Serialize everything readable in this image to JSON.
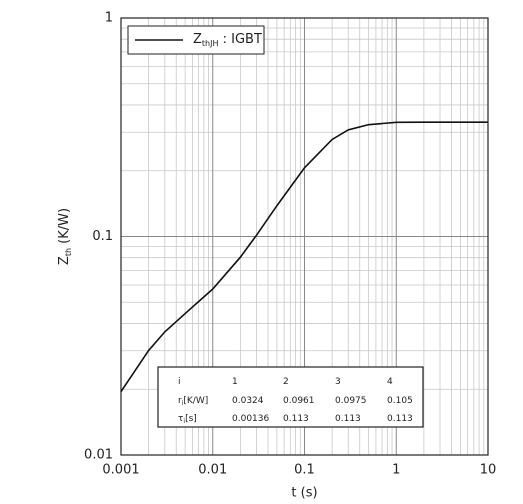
{
  "chart_data": {
    "type": "line",
    "log_x": true,
    "log_y": true,
    "grid": true,
    "xlabel": "t (s)",
    "ylabel": {
      "main": "Z",
      "sub": "th",
      "rest": " (K/W)"
    },
    "x": [
      0.001,
      0.002,
      0.003,
      0.005,
      0.01,
      0.02,
      0.03,
      0.05,
      0.1,
      0.2,
      0.3,
      0.5,
      1,
      2,
      10
    ],
    "series": [
      {
        "name": "Z",
        "name_sub": "thJH",
        "name_rest": " : IGBT",
        "color": "#111111",
        "values": [
          0.0195,
          0.0301,
          0.0366,
          0.0444,
          0.0575,
          0.0804,
          0.1014,
          0.1383,
          0.2062,
          0.278,
          0.3077,
          0.325,
          0.333,
          0.3334,
          0.3334
        ]
      }
    ],
    "xlim": [
      0.001,
      10
    ],
    "xticks": [
      0.001,
      0.01,
      0.1,
      1,
      10
    ],
    "ylim": [
      0.01,
      1
    ],
    "yticks": [
      0.01,
      0.1,
      1
    ],
    "legend": "top-left",
    "table": {
      "rows": [
        [
          "i",
          "1",
          "2",
          "3",
          "4"
        ],
        [
          "r",
          "0.0324",
          "0.0961",
          "0.0975",
          "0.105"
        ],
        [
          "τ",
          "0.00136",
          "0.113",
          "0.113",
          "0.113"
        ]
      ],
      "row_sub": [
        "",
        "i",
        "i"
      ],
      "row_unit": [
        "",
        "[K/W]",
        "[s]"
      ]
    }
  }
}
